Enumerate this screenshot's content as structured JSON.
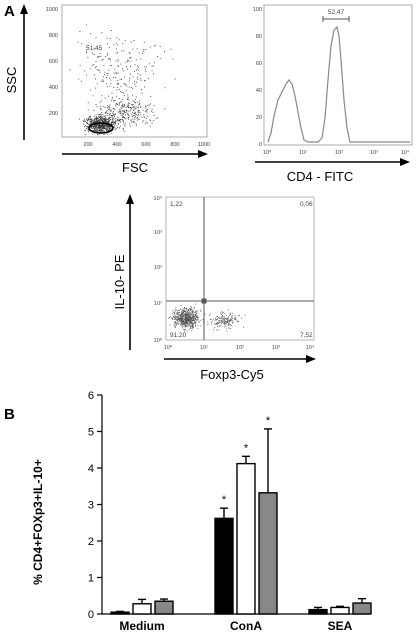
{
  "panels": {
    "a_letter": "A",
    "b_letter": "B"
  },
  "scatter_fsc_ssc": {
    "xlabel": "FSC",
    "ylabel": "SSC",
    "gate_value": "51,45",
    "xticks": [
      "200",
      "400",
      "600",
      "800",
      "1000"
    ],
    "yticks": [
      "200",
      "400",
      "600",
      "800",
      "1000"
    ]
  },
  "histogram_cd4": {
    "xlabel": "CD4 - FITC",
    "gate_value": "52,47",
    "xticks": [
      "10⁰",
      "10¹",
      "10²",
      "10³",
      "10⁴"
    ],
    "yticks": [
      "0",
      "20",
      "40",
      "60",
      "80",
      "100"
    ]
  },
  "quadrant_plot": {
    "xlabel": "Foxp3-Cy5",
    "ylabel": "IL-10- PE",
    "q_upper_left": "1,22",
    "q_upper_right": "0,06",
    "q_lower_left": "91,20",
    "q_lower_right": "7,52",
    "xticks": [
      "10⁰",
      "10¹",
      "10²",
      "10³",
      "10⁴"
    ],
    "yticks": [
      "10⁰",
      "10¹",
      "10²",
      "10³",
      "10⁴"
    ]
  },
  "chart_data": {
    "type": "bar",
    "ylabel": "% CD4+FOXp3+IL-10+",
    "ylim": [
      0,
      6
    ],
    "yticks": [
      "0",
      "1",
      "2",
      "3",
      "4",
      "5",
      "6"
    ],
    "categories": [
      "Medium",
      "ConA",
      "SEA"
    ],
    "series": [
      {
        "color": "#000000",
        "values": [
          0.05,
          2.62,
          0.12
        ],
        "errors": [
          0.02,
          0.28,
          0.06
        ]
      },
      {
        "color": "#ffffff",
        "values": [
          0.28,
          4.12,
          0.18
        ],
        "errors": [
          0.12,
          0.2,
          0.03
        ]
      },
      {
        "color": "#888888",
        "values": [
          0.35,
          3.32,
          0.3
        ],
        "errors": [
          0.06,
          1.75,
          0.12
        ]
      }
    ],
    "significance": [
      "",
      "*",
      ""
    ],
    "significance_marker": "*"
  }
}
